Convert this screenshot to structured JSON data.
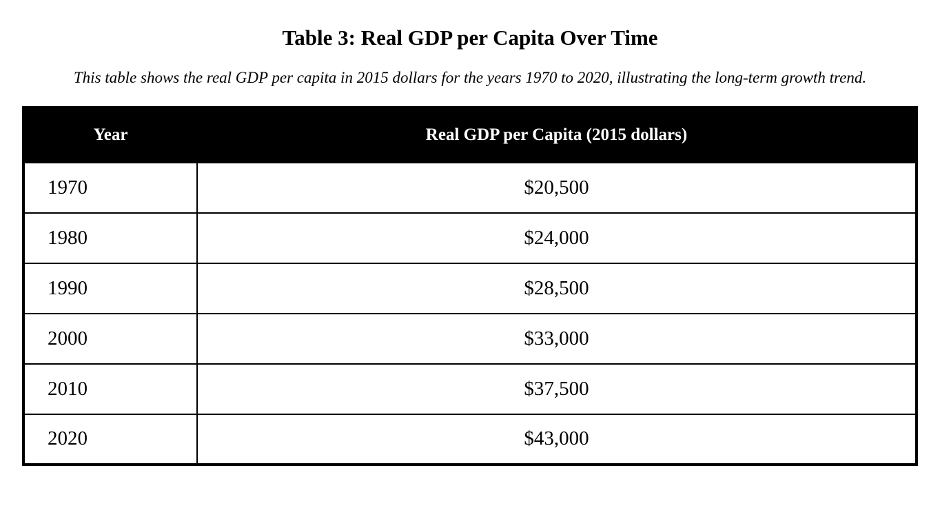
{
  "page": {
    "title": "Table 3: Real GDP per Capita Over Time",
    "caption": "This table shows the real GDP per capita in 2015 dollars for the years 1970 to 2020, illustrating the long-term growth trend."
  },
  "table": {
    "headers": {
      "year": "Year",
      "value": "Real GDP per Capita (2015 dollars)"
    },
    "rows": [
      {
        "year": "1970",
        "value": "$20,500"
      },
      {
        "year": "1980",
        "value": "$24,000"
      },
      {
        "year": "1990",
        "value": "$28,500"
      },
      {
        "year": "2000",
        "value": "$33,000"
      },
      {
        "year": "2010",
        "value": "$37,500"
      },
      {
        "year": "2020",
        "value": "$43,000"
      }
    ]
  },
  "colors": {
    "header_background": "#000000",
    "header_text": "#ffffff",
    "body_text": "#000000",
    "border": "#000000",
    "page_background": "#ffffff"
  },
  "chart_data": {
    "type": "table",
    "title": "Table 3: Real GDP per Capita Over Time",
    "caption": "This table shows the real GDP per capita in 2015 dollars for the years 1970 to 2020, illustrating the long-term growth trend.",
    "columns": [
      "Year",
      "Real GDP per Capita (2015 dollars)"
    ],
    "categories": [
      1970,
      1980,
      1990,
      2000,
      2010,
      2020
    ],
    "values": [
      20500,
      24000,
      28500,
      33000,
      37500,
      43000
    ],
    "unit": "2015 dollars",
    "grid": "full-borders",
    "header_style": "black-background-white-text"
  }
}
